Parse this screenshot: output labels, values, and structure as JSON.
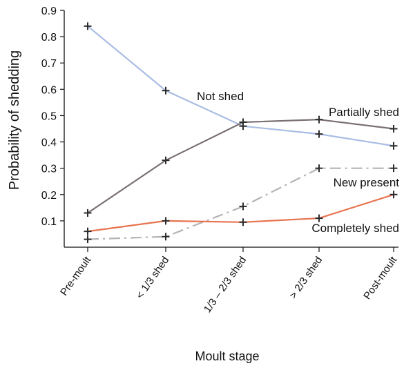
{
  "chart_data": {
    "type": "line",
    "title": "",
    "xlabel": "Moult stage",
    "ylabel": "Probability of  shedding",
    "categories": [
      "Pre-moult",
      "< 1/3 shed",
      "1/3 – 2/3 shed",
      "> 2/3 shed",
      "Post-moult"
    ],
    "ylim": [
      0,
      0.9
    ],
    "yticks": [
      0.1,
      0.2,
      0.3,
      0.4,
      0.5,
      0.6,
      0.7,
      0.8,
      0.9
    ],
    "grid": false,
    "marker": "plus",
    "series": [
      {
        "name": "Not shed",
        "color": "#a9bce3",
        "dash": "solid",
        "values": [
          0.84,
          0.595,
          0.46,
          0.43,
          0.385
        ]
      },
      {
        "name": "Partially shed",
        "color": "#7a7073",
        "dash": "solid",
        "values": [
          0.13,
          0.33,
          0.475,
          0.485,
          0.45
        ]
      },
      {
        "name": "New present",
        "color": "#b3b3b3",
        "dash": "dashdot",
        "values": [
          0.03,
          0.04,
          0.155,
          0.3,
          0.3
        ]
      },
      {
        "name": "Completely shed",
        "color": "#e8734f",
        "dash": "solid",
        "values": [
          0.06,
          0.1,
          0.095,
          0.11,
          0.2
        ]
      }
    ]
  }
}
